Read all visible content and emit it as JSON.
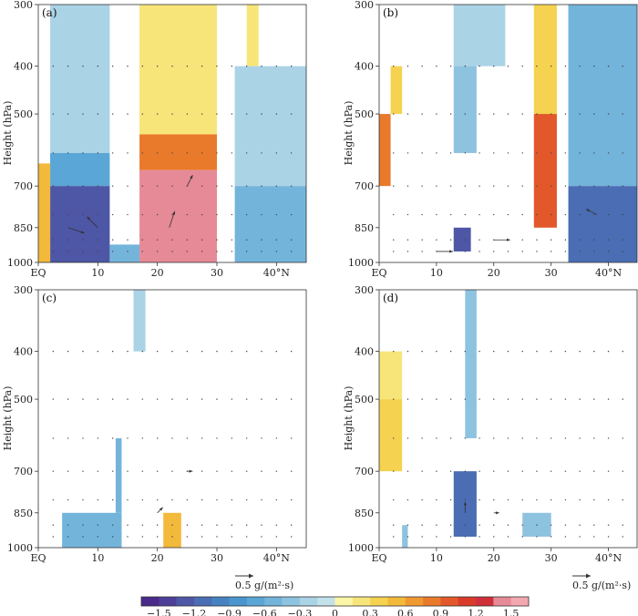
{
  "chart_data": {
    "type": "heatmap",
    "title": "",
    "xlabel": "",
    "ylabel": "Height (hPa)",
    "x_ticks": [
      "EQ",
      "10",
      "20",
      "30",
      "40°N"
    ],
    "x_tick_values": [
      0,
      10,
      20,
      30,
      40
    ],
    "x_range": [
      0,
      45
    ],
    "y_ticks": [
      "300",
      "400",
      "500",
      "700",
      "850",
      "1000"
    ],
    "y_tick_values": [
      300,
      400,
      500,
      700,
      850,
      1000
    ],
    "y_range": [
      300,
      1000
    ],
    "vector_reference": "0.5 g/(m²·s)",
    "colorbar": {
      "tick_labels": [
        "−1.5",
        "−1.2",
        "−0.9",
        "−0.6",
        "−0.3",
        "0",
        "0.3",
        "0.6",
        "0.9",
        "1.2",
        "1.5"
      ],
      "boundaries": [
        -1.65,
        -1.5,
        -1.35,
        -1.2,
        -1.05,
        -0.9,
        -0.75,
        -0.6,
        -0.45,
        -0.3,
        -0.15,
        0,
        0.15,
        0.3,
        0.45,
        0.6,
        0.75,
        0.9,
        1.05,
        1.2,
        1.35,
        1.5,
        1.65
      ],
      "colors": [
        "#4a2a8a",
        "#4d3f99",
        "#4e56a6",
        "#4a6db4",
        "#4682c1",
        "#4a95cd",
        "#5aa6d6",
        "#73b4db",
        "#8ec3e0",
        "#aad3e6",
        "#c3e1ea",
        "#fbf5a8",
        "#f8e57a",
        "#f5d24f",
        "#f3b93b",
        "#ef9a30",
        "#e97a2c",
        "#e2582a",
        "#d93a2a",
        "#cf2f3a",
        "#e58a96",
        "#f3a8b0"
      ]
    },
    "panels": [
      {
        "label": "(a)",
        "cells": [
          {
            "x0": 2,
            "x1": 12,
            "p0": 300,
            "p1": 600,
            "value": -0.25
          },
          {
            "x0": 2,
            "x1": 12,
            "p0": 600,
            "p1": 700,
            "value": -0.7
          },
          {
            "x0": 2,
            "x1": 12,
            "p0": 700,
            "p1": 1000,
            "value": -1.3
          },
          {
            "x0": 0,
            "x1": 2,
            "p0": 630,
            "p1": 1000,
            "value": 0.55
          },
          {
            "x0": 12,
            "x1": 17,
            "p0": 920,
            "p1": 1000,
            "value": -0.6
          },
          {
            "x0": 17,
            "x1": 30,
            "p0": 300,
            "p1": 550,
            "value": 0.25
          },
          {
            "x0": 17,
            "x1": 30,
            "p0": 550,
            "p1": 650,
            "value": 0.75
          },
          {
            "x0": 17,
            "x1": 30,
            "p0": 650,
            "p1": 1000,
            "value": 1.45
          },
          {
            "x0": 35,
            "x1": 37,
            "p0": 300,
            "p1": 400,
            "value": 0.2
          },
          {
            "x0": 33,
            "x1": 45,
            "p0": 400,
            "p1": 700,
            "value": -0.3
          },
          {
            "x0": 33,
            "x1": 45,
            "p0": 700,
            "p1": 1000,
            "value": -0.6
          }
        ],
        "vectors": [
          {
            "x": 5,
            "p": 850,
            "u": 3,
            "v": -1
          },
          {
            "x": 10,
            "p": 850,
            "u": -2,
            "v": 2
          },
          {
            "x": 22,
            "p": 850,
            "u": 1,
            "v": 3
          },
          {
            "x": 25,
            "p": 700,
            "u": 1,
            "v": 2
          }
        ]
      },
      {
        "label": "(b)",
        "cells": [
          {
            "x0": 0,
            "x1": 2,
            "p0": 500,
            "p1": 700,
            "value": 0.75
          },
          {
            "x0": 2,
            "x1": 4,
            "p0": 400,
            "p1": 500,
            "value": 0.35
          },
          {
            "x0": 13,
            "x1": 22,
            "p0": 300,
            "p1": 400,
            "value": -0.3
          },
          {
            "x0": 13,
            "x1": 17,
            "p0": 400,
            "p1": 600,
            "value": -0.35
          },
          {
            "x0": 13,
            "x1": 16,
            "p0": 850,
            "p1": 950,
            "value": -1.3
          },
          {
            "x0": 27,
            "x1": 31,
            "p0": 300,
            "p1": 500,
            "value": 0.35
          },
          {
            "x0": 27,
            "x1": 31,
            "p0": 500,
            "p1": 850,
            "value": 0.9
          },
          {
            "x0": 33,
            "x1": 45,
            "p0": 300,
            "p1": 700,
            "value": -0.5
          },
          {
            "x0": 33,
            "x1": 45,
            "p0": 700,
            "p1": 1000,
            "value": -1.2
          }
        ],
        "vectors": [
          {
            "x": 10,
            "p": 950,
            "u": 3,
            "v": 0
          },
          {
            "x": 20,
            "p": 900,
            "u": 3,
            "v": 0
          },
          {
            "x": 38,
            "p": 800,
            "u": -2,
            "v": 1
          }
        ]
      },
      {
        "label": "(c)",
        "cells": [
          {
            "x0": 16,
            "x1": 18,
            "p0": 300,
            "p1": 400,
            "value": -0.25
          },
          {
            "x0": 13,
            "x1": 14,
            "p0": 600,
            "p1": 850,
            "value": -0.55
          },
          {
            "x0": 4,
            "x1": 14,
            "p0": 850,
            "p1": 1000,
            "value": -0.55
          },
          {
            "x0": 21,
            "x1": 24,
            "p0": 850,
            "p1": 1000,
            "value": 0.5
          }
        ],
        "vectors": [
          {
            "x": 20,
            "p": 850,
            "u": 1,
            "v": 1
          },
          {
            "x": 25,
            "p": 700,
            "u": 1,
            "v": 0
          }
        ]
      },
      {
        "label": "(d)",
        "cells": [
          {
            "x0": 0,
            "x1": 4,
            "p0": 400,
            "p1": 500,
            "value": 0.2
          },
          {
            "x0": 0,
            "x1": 4,
            "p0": 500,
            "p1": 700,
            "value": 0.4
          },
          {
            "x0": 15,
            "x1": 17,
            "p0": 300,
            "p1": 600,
            "value": -0.35
          },
          {
            "x0": 13,
            "x1": 17,
            "p0": 700,
            "p1": 950,
            "value": -1.2
          },
          {
            "x0": 4,
            "x1": 5,
            "p0": 900,
            "p1": 1000,
            "value": -0.45
          },
          {
            "x0": 25,
            "x1": 30,
            "p0": 850,
            "p1": 950,
            "value": -0.45
          }
        ],
        "vectors": [
          {
            "x": 15,
            "p": 850,
            "u": 0,
            "v": 2
          },
          {
            "x": 20,
            "p": 850,
            "u": 1,
            "v": 0
          }
        ]
      }
    ]
  }
}
